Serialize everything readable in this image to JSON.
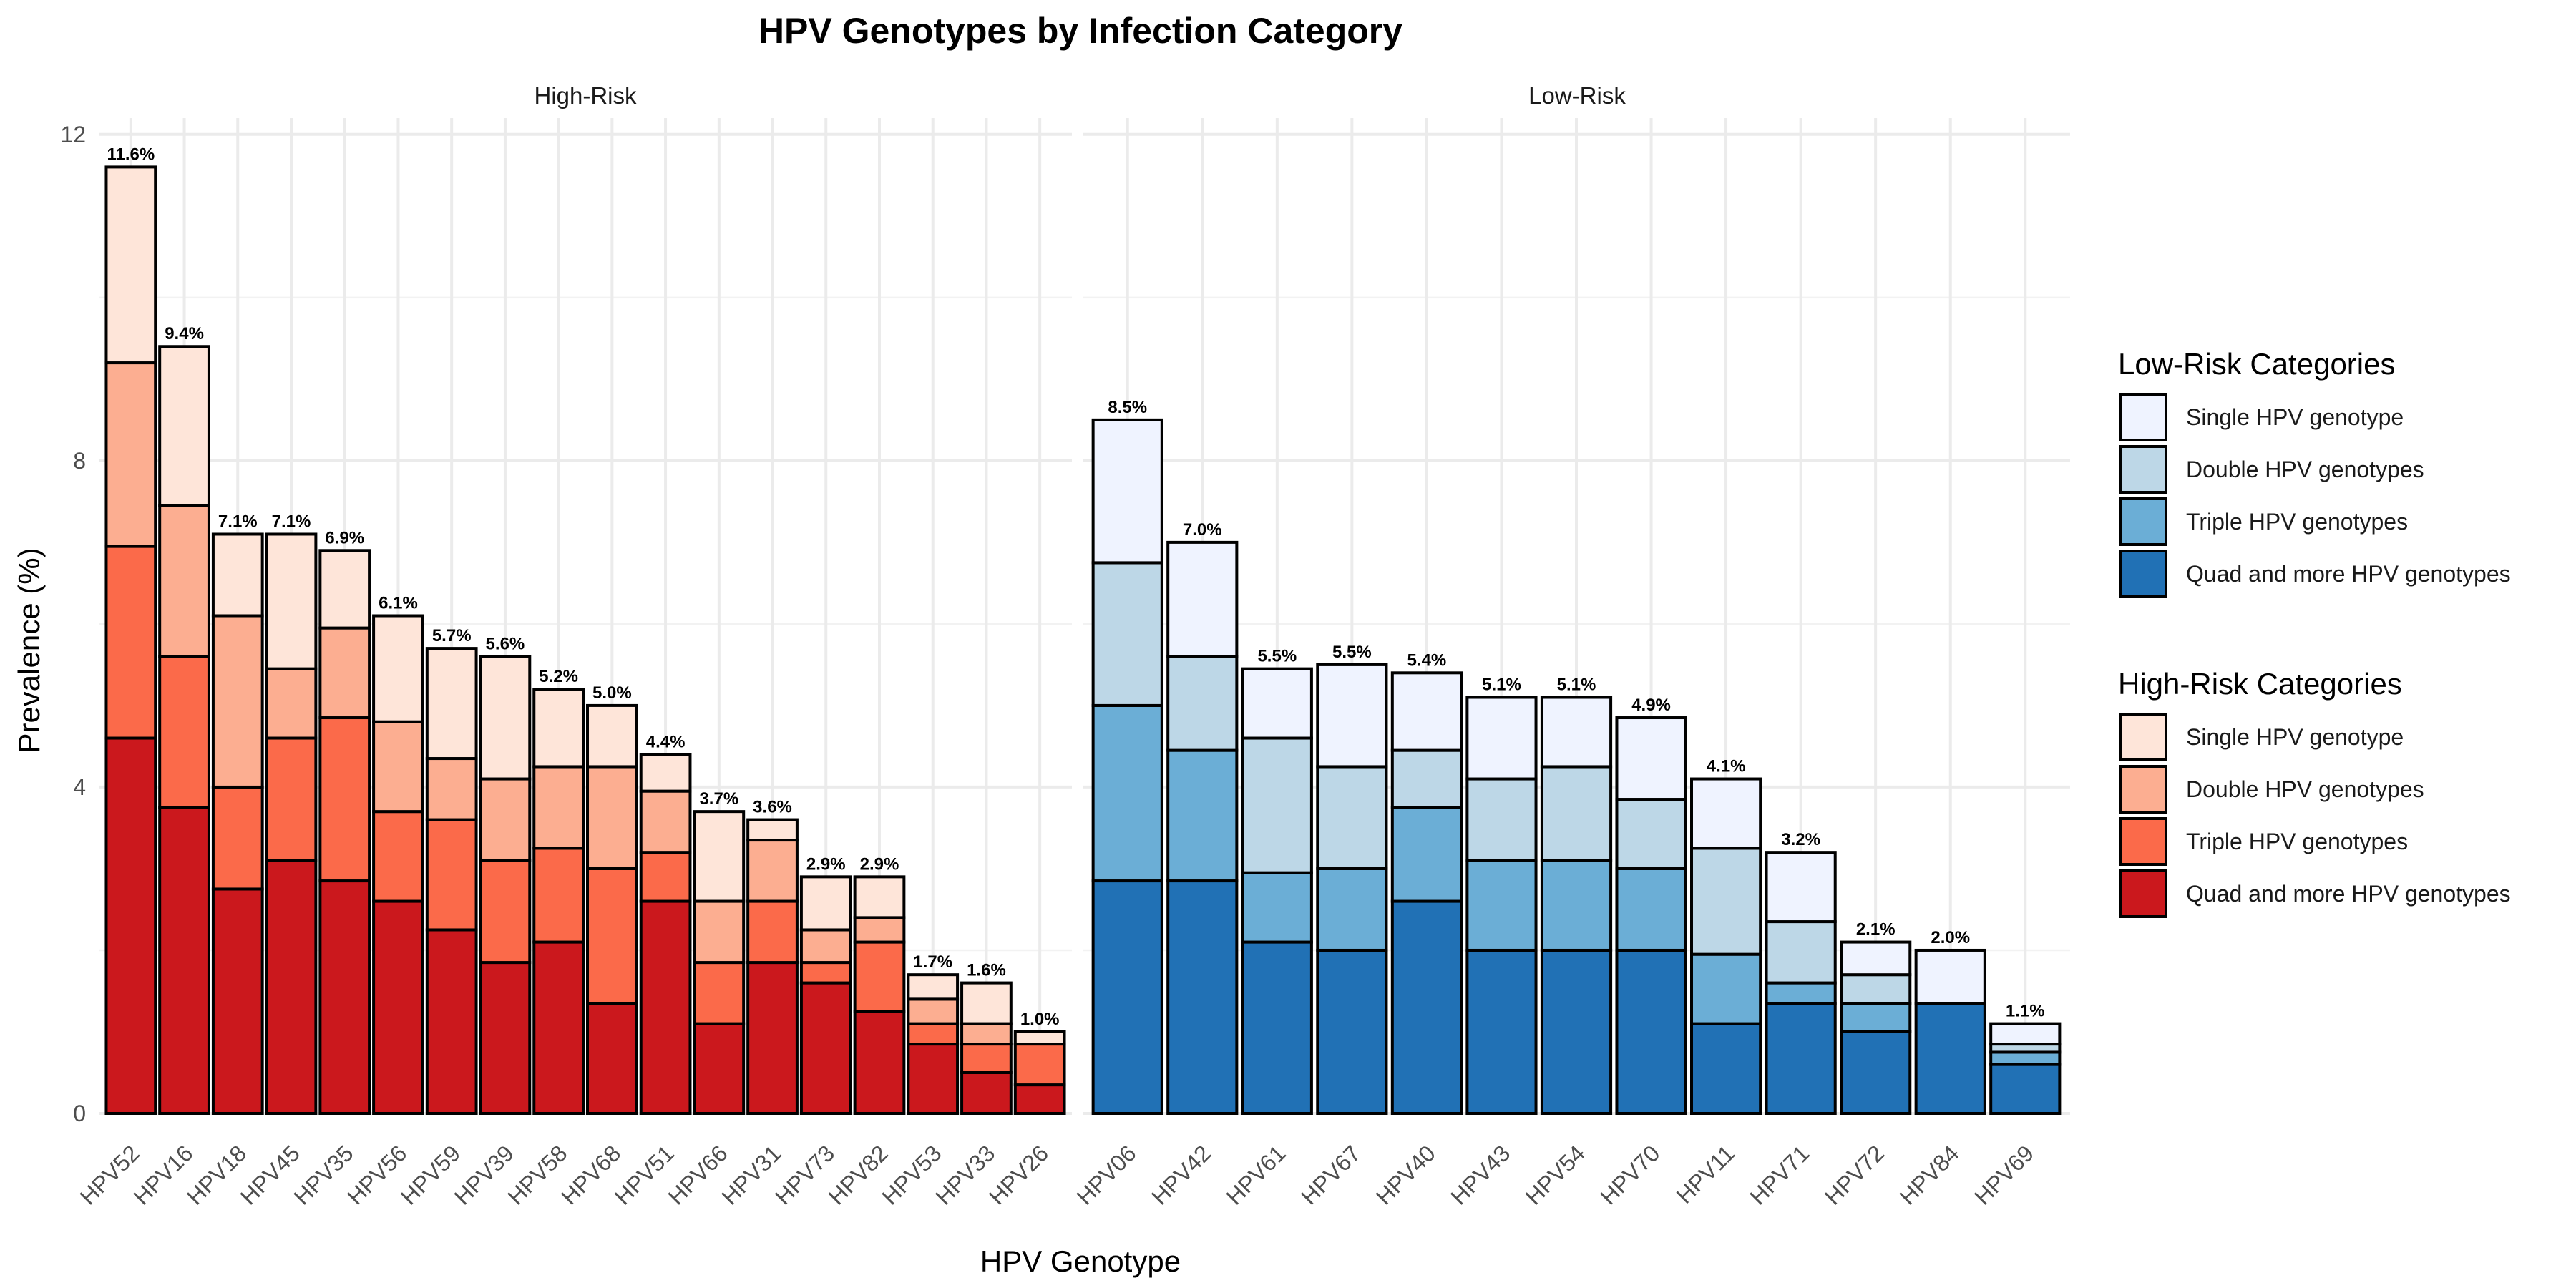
{
  "chart_data": {
    "type": "bar",
    "stacked": true,
    "title": "HPV Genotypes by Infection Category",
    "xlabel": "HPV Genotype",
    "ylabel": "Prevalence (%)",
    "ylim": [
      0,
      12.2
    ],
    "yticks": [
      0,
      4,
      8,
      12
    ],
    "grid": true,
    "legend_position": "right",
    "facets": [
      {
        "name": "High-Risk",
        "legend": "High-Risk Categories",
        "categories": [
          "HPV52",
          "HPV16",
          "HPV18",
          "HPV45",
          "HPV35",
          "HPV56",
          "HPV59",
          "HPV39",
          "HPV58",
          "HPV68",
          "HPV51",
          "HPV66",
          "HPV31",
          "HPV73",
          "HPV82",
          "HPV53",
          "HPV33",
          "HPV26"
        ],
        "totals_label": [
          "11.6%",
          "9.4%",
          "7.1%",
          "7.1%",
          "6.9%",
          "6.1%",
          "5.7%",
          "5.6%",
          "5.2%",
          "5.0%",
          "4.4%",
          "3.7%",
          "3.6%",
          "2.9%",
          "2.9%",
          "1.7%",
          "1.6%",
          "1.0%"
        ],
        "series": [
          {
            "name": "Quad and more HPV genotypes",
            "color": "#cb181d",
            "values": [
              4.6,
              3.75,
              2.75,
              3.1,
              2.85,
              2.6,
              2.25,
              1.85,
              2.1,
              1.35,
              2.6,
              1.1,
              1.85,
              1.6,
              1.25,
              0.85,
              0.5,
              0.35
            ]
          },
          {
            "name": "Triple HPV genotypes",
            "color": "#fb6a4a",
            "values": [
              2.35,
              1.85,
              1.25,
              1.5,
              2.0,
              1.1,
              1.35,
              1.25,
              1.15,
              1.65,
              0.6,
              0.75,
              0.75,
              0.25,
              0.85,
              0.25,
              0.35,
              0.5
            ]
          },
          {
            "name": "Double HPV genotypes",
            "color": "#fcae91",
            "values": [
              2.25,
              1.85,
              2.1,
              0.85,
              1.1,
              1.1,
              0.75,
              1.0,
              1.0,
              1.25,
              0.75,
              0.75,
              0.75,
              0.4,
              0.3,
              0.3,
              0.25,
              0.0
            ]
          },
          {
            "name": "Single HPV genotype",
            "color": "#fee5d9",
            "values": [
              2.4,
              1.95,
              1.0,
              1.65,
              0.95,
              1.3,
              1.35,
              1.5,
              0.95,
              0.75,
              0.45,
              1.1,
              0.25,
              0.65,
              0.5,
              0.3,
              0.5,
              0.15
            ]
          }
        ]
      },
      {
        "name": "Low-Risk",
        "legend": "Low-Risk Categories",
        "categories": [
          "HPV06",
          "HPV42",
          "HPV61",
          "HPV67",
          "HPV40",
          "HPV43",
          "HPV54",
          "HPV70",
          "HPV11",
          "HPV71",
          "HPV72",
          "HPV84",
          "HPV69"
        ],
        "totals_label": [
          "8.5%",
          "7.0%",
          "5.5%",
          "5.5%",
          "5.4%",
          "5.1%",
          "5.1%",
          "4.9%",
          "4.1%",
          "3.2%",
          "2.1%",
          "2.0%",
          "1.1%"
        ],
        "series": [
          {
            "name": "Quad and more HPV genotypes",
            "color": "#2171b5",
            "values": [
              2.85,
              2.85,
              2.1,
              2.0,
              2.6,
              2.0,
              2.0,
              2.0,
              1.1,
              1.35,
              1.0,
              1.35,
              0.6
            ]
          },
          {
            "name": "Triple HPV genotypes",
            "color": "#6baed6",
            "values": [
              2.15,
              1.6,
              0.85,
              1.0,
              1.15,
              1.1,
              1.1,
              1.0,
              0.85,
              0.25,
              0.35,
              0.0,
              0.15
            ]
          },
          {
            "name": "Double HPV genotypes",
            "color": "#bdd7e7",
            "values": [
              1.75,
              1.15,
              1.65,
              1.25,
              0.7,
              1.0,
              1.15,
              0.85,
              1.3,
              0.75,
              0.35,
              0.0,
              0.1
            ]
          },
          {
            "name": "Single HPV genotype",
            "color": "#eff3ff",
            "values": [
              1.75,
              1.4,
              0.85,
              1.25,
              0.95,
              1.0,
              0.85,
              1.0,
              0.85,
              0.85,
              0.4,
              0.65,
              0.25
            ]
          }
        ]
      }
    ]
  },
  "legend_groups": [
    {
      "title": "Low-Risk Categories",
      "items": [
        {
          "label": "Single HPV genotype",
          "color": "#eff3ff"
        },
        {
          "label": "Double HPV genotypes",
          "color": "#bdd7e7"
        },
        {
          "label": "Triple HPV genotypes",
          "color": "#6baed6"
        },
        {
          "label": "Quad and more HPV genotypes",
          "color": "#2171b5"
        }
      ]
    },
    {
      "title": "High-Risk Categories",
      "items": [
        {
          "label": "Single HPV genotype",
          "color": "#fee5d9"
        },
        {
          "label": "Double HPV genotypes",
          "color": "#fcae91"
        },
        {
          "label": "Triple HPV genotypes",
          "color": "#fb6a4a"
        },
        {
          "label": "Quad and more HPV genotypes",
          "color": "#cb181d"
        }
      ]
    }
  ]
}
